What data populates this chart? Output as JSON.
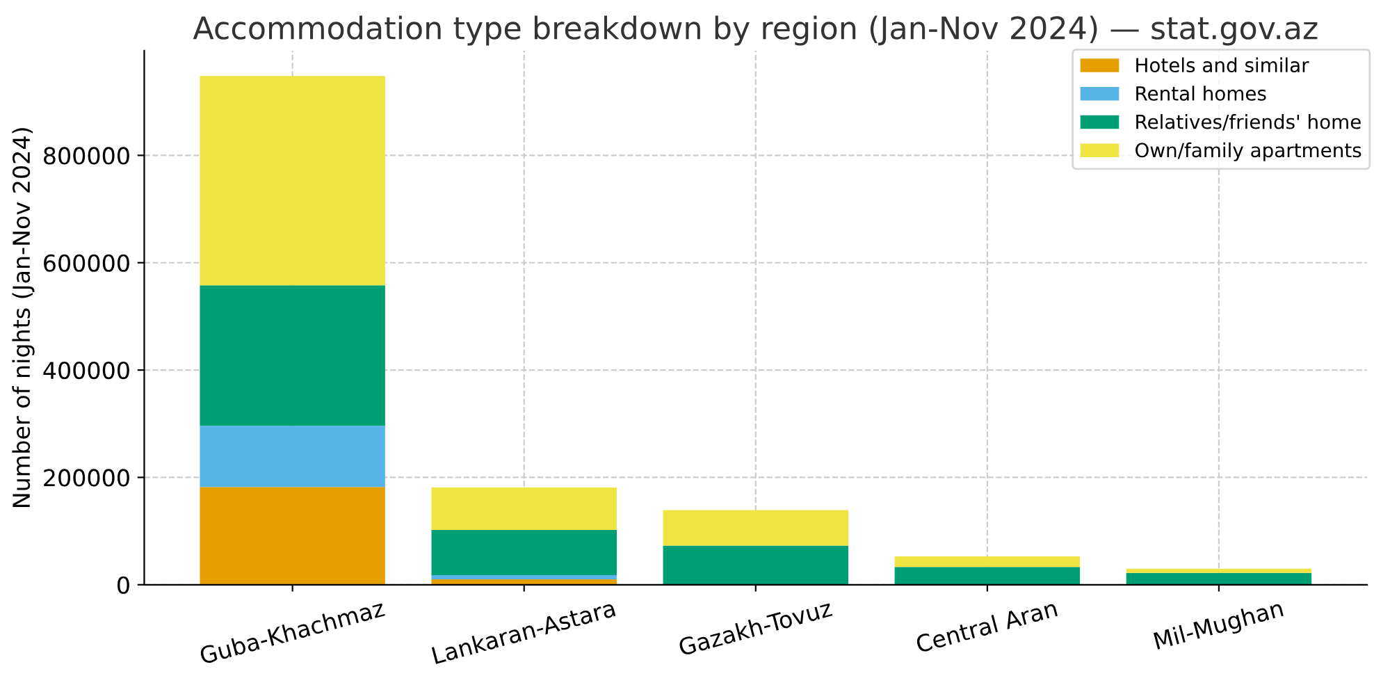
{
  "chart_data": {
    "type": "bar",
    "stacked": true,
    "title": "Accommodation type breakdown by region (Jan-Nov 2024) — stat.gov.az",
    "ylabel": "Number of nights (Jan-Nov 2024)",
    "categories": [
      "Guba-Khachmaz",
      "Lankaran-Astara",
      "Gazakh-Tovuz",
      "Central Aran",
      "Mil-Mughan"
    ],
    "series": [
      {
        "name": "Hotels and similar",
        "color": "#e69f00",
        "values": [
          182000,
          10000,
          null,
          null,
          null
        ]
      },
      {
        "name": "Rental homes",
        "color": "#56b4e9",
        "values": [
          114000,
          8000,
          null,
          null,
          null
        ]
      },
      {
        "name": "Relatives/friends' home",
        "color": "#009e73",
        "values": [
          262000,
          84000,
          73000,
          33000,
          22000
        ]
      },
      {
        "name": "Own/family apartments",
        "color": "#f0e442",
        "values": [
          390000,
          79000,
          66000,
          20000,
          8000
        ]
      }
    ],
    "ylim": [
      0,
      995000
    ],
    "yticks": [
      0,
      200000,
      400000,
      600000,
      800000
    ],
    "grid": true,
    "legend": "top right"
  }
}
